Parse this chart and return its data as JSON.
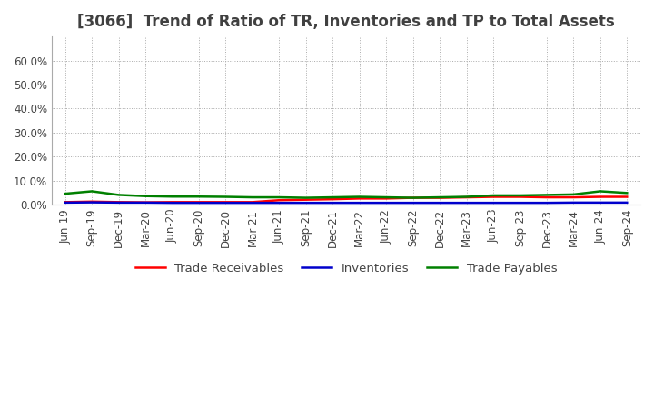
{
  "title": "[3066]  Trend of Ratio of TR, Inventories and TP to Total Assets",
  "ylim": [
    0.0,
    0.7
  ],
  "yticks": [
    0.0,
    0.1,
    0.2,
    0.3,
    0.4,
    0.5,
    0.6
  ],
  "ytick_labels": [
    "0.0%",
    "10.0%",
    "20.0%",
    "30.0%",
    "40.0%",
    "50.0%",
    "60.0%"
  ],
  "dates": [
    "Jun-19",
    "Sep-19",
    "Dec-19",
    "Mar-20",
    "Jun-20",
    "Sep-20",
    "Dec-20",
    "Mar-21",
    "Jun-21",
    "Sep-21",
    "Dec-21",
    "Mar-22",
    "Jun-22",
    "Sep-22",
    "Dec-22",
    "Mar-23",
    "Jun-23",
    "Sep-23",
    "Dec-23",
    "Mar-24",
    "Jun-24",
    "Sep-24"
  ],
  "trade_receivables": [
    0.01,
    0.012,
    0.01,
    0.009,
    0.01,
    0.01,
    0.01,
    0.01,
    0.018,
    0.02,
    0.022,
    0.025,
    0.025,
    0.028,
    0.028,
    0.03,
    0.032,
    0.032,
    0.03,
    0.03,
    0.032,
    0.032
  ],
  "inventories": [
    0.008,
    0.009,
    0.008,
    0.008,
    0.007,
    0.007,
    0.007,
    0.007,
    0.007,
    0.007,
    0.007,
    0.007,
    0.007,
    0.007,
    0.007,
    0.007,
    0.007,
    0.007,
    0.007,
    0.008,
    0.008,
    0.008
  ],
  "trade_payables": [
    0.045,
    0.055,
    0.04,
    0.035,
    0.033,
    0.033,
    0.032,
    0.03,
    0.03,
    0.028,
    0.03,
    0.032,
    0.03,
    0.028,
    0.03,
    0.032,
    0.038,
    0.038,
    0.04,
    0.042,
    0.055,
    0.048
  ],
  "tr_color": "#ff0000",
  "inv_color": "#0000cc",
  "tp_color": "#008000",
  "tr_label": "Trade Receivables",
  "inv_label": "Inventories",
  "tp_label": "Trade Payables",
  "grid_color": "#aaaaaa",
  "bg_color": "#ffffff",
  "plot_bg_color": "#ffffff",
  "title_color": "#404040",
  "title_fontsize": 12,
  "tick_fontsize": 8.5,
  "legend_fontsize": 9.5,
  "line_width": 1.8
}
